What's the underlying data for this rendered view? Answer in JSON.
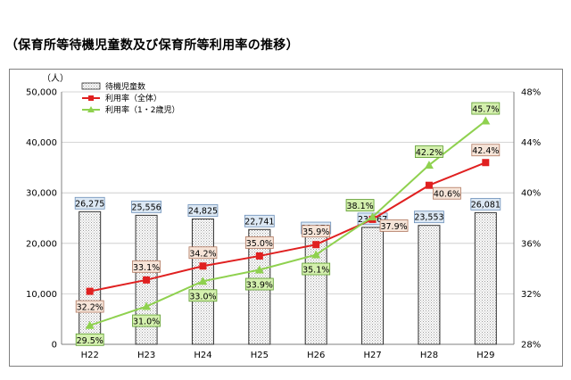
{
  "page_title": "（保育所等待機児童数及び保育所等利用率の推移）",
  "chart_data": {
    "type": "bar",
    "combo": "bar + line (secondary axis)",
    "categories": [
      "H22",
      "H23",
      "H24",
      "H25",
      "H26",
      "H27",
      "H28",
      "H29"
    ],
    "left_axis": {
      "unit": "（人）",
      "ylim": [
        0,
        50000
      ],
      "ticks": [
        "0",
        "10,000",
        "20,000",
        "30,000",
        "40,000",
        "50,000"
      ]
    },
    "right_axis": {
      "ylim": [
        28,
        48
      ],
      "ticks": [
        "28%",
        "32%",
        "36%",
        "40%",
        "44%",
        "48%"
      ]
    },
    "legend_position": "top-left",
    "grid": "horizontal",
    "series": [
      {
        "name": "待機児童数",
        "type": "bar",
        "axis": "left",
        "color": "#cccccc",
        "values": [
          26275,
          25556,
          24825,
          22741,
          21371,
          23167,
          23553,
          26081
        ],
        "labels": [
          "26,275",
          "25,556",
          "24,825",
          "22,741",
          "21,371",
          "23,167",
          "23,553",
          "26,081"
        ]
      },
      {
        "name": "利用率（全体）",
        "type": "line",
        "axis": "right",
        "color": "#e02020",
        "marker": "square",
        "values": [
          32.2,
          33.1,
          34.2,
          35.0,
          35.9,
          37.9,
          40.6,
          42.4
        ],
        "labels": [
          "32.2%",
          "33.1%",
          "34.2%",
          "35.0%",
          "35.9%",
          "37.9%",
          "40.6%",
          "42.4%"
        ]
      },
      {
        "name": "利用率（1・2歳児）",
        "type": "line",
        "axis": "right",
        "color": "#8fd14f",
        "marker": "triangle",
        "values": [
          29.5,
          31.0,
          33.0,
          33.9,
          35.1,
          38.1,
          42.2,
          45.7
        ],
        "labels": [
          "29.5%",
          "31.0%",
          "33.0%",
          "33.9%",
          "35.1%",
          "38.1%",
          "42.2%",
          "45.7%"
        ]
      }
    ]
  }
}
